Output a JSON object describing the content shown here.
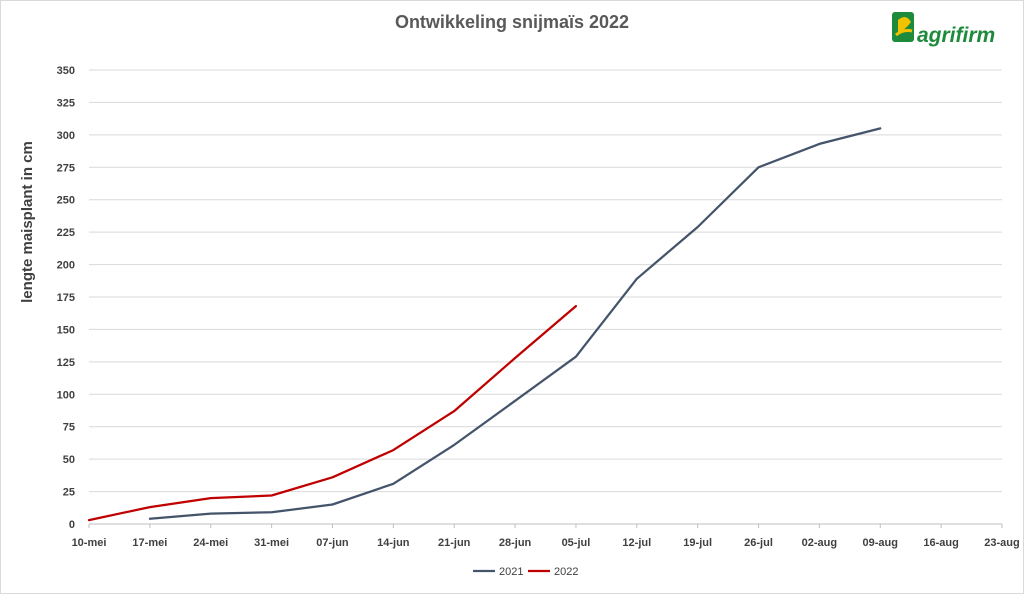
{
  "logo": {
    "text": "agrifirm",
    "colors": {
      "green": "#1e8a3c",
      "yellow": "#f2c200"
    }
  },
  "chart_data": {
    "type": "line",
    "title": "Ontwikkeling snijmaïs 2022",
    "xlabel": "",
    "ylabel": "lengte maisplant in cm",
    "categories": [
      "10-mei",
      "17-mei",
      "24-mei",
      "31-mei",
      "07-jun",
      "14-jun",
      "21-jun",
      "28-jun",
      "05-jul",
      "12-jul",
      "19-jul",
      "26-jul",
      "02-aug",
      "09-aug",
      "16-aug",
      "23-aug"
    ],
    "ylim": [
      0,
      350
    ],
    "yticks": [
      0,
      25,
      50,
      75,
      100,
      125,
      150,
      175,
      200,
      225,
      250,
      275,
      300,
      325,
      350
    ],
    "grid": true,
    "legend_position": "bottom",
    "series": [
      {
        "name": "2021",
        "color": "#44546a",
        "values": [
          null,
          4,
          8,
          9,
          15,
          31,
          61,
          95,
          129,
          189,
          229,
          275,
          293,
          305,
          null,
          null
        ]
      },
      {
        "name": "2022",
        "color": "#c00000",
        "values": [
          3,
          13,
          20,
          22,
          36,
          57,
          87,
          128,
          168,
          null,
          null,
          null,
          null,
          null,
          null,
          null
        ]
      }
    ]
  }
}
